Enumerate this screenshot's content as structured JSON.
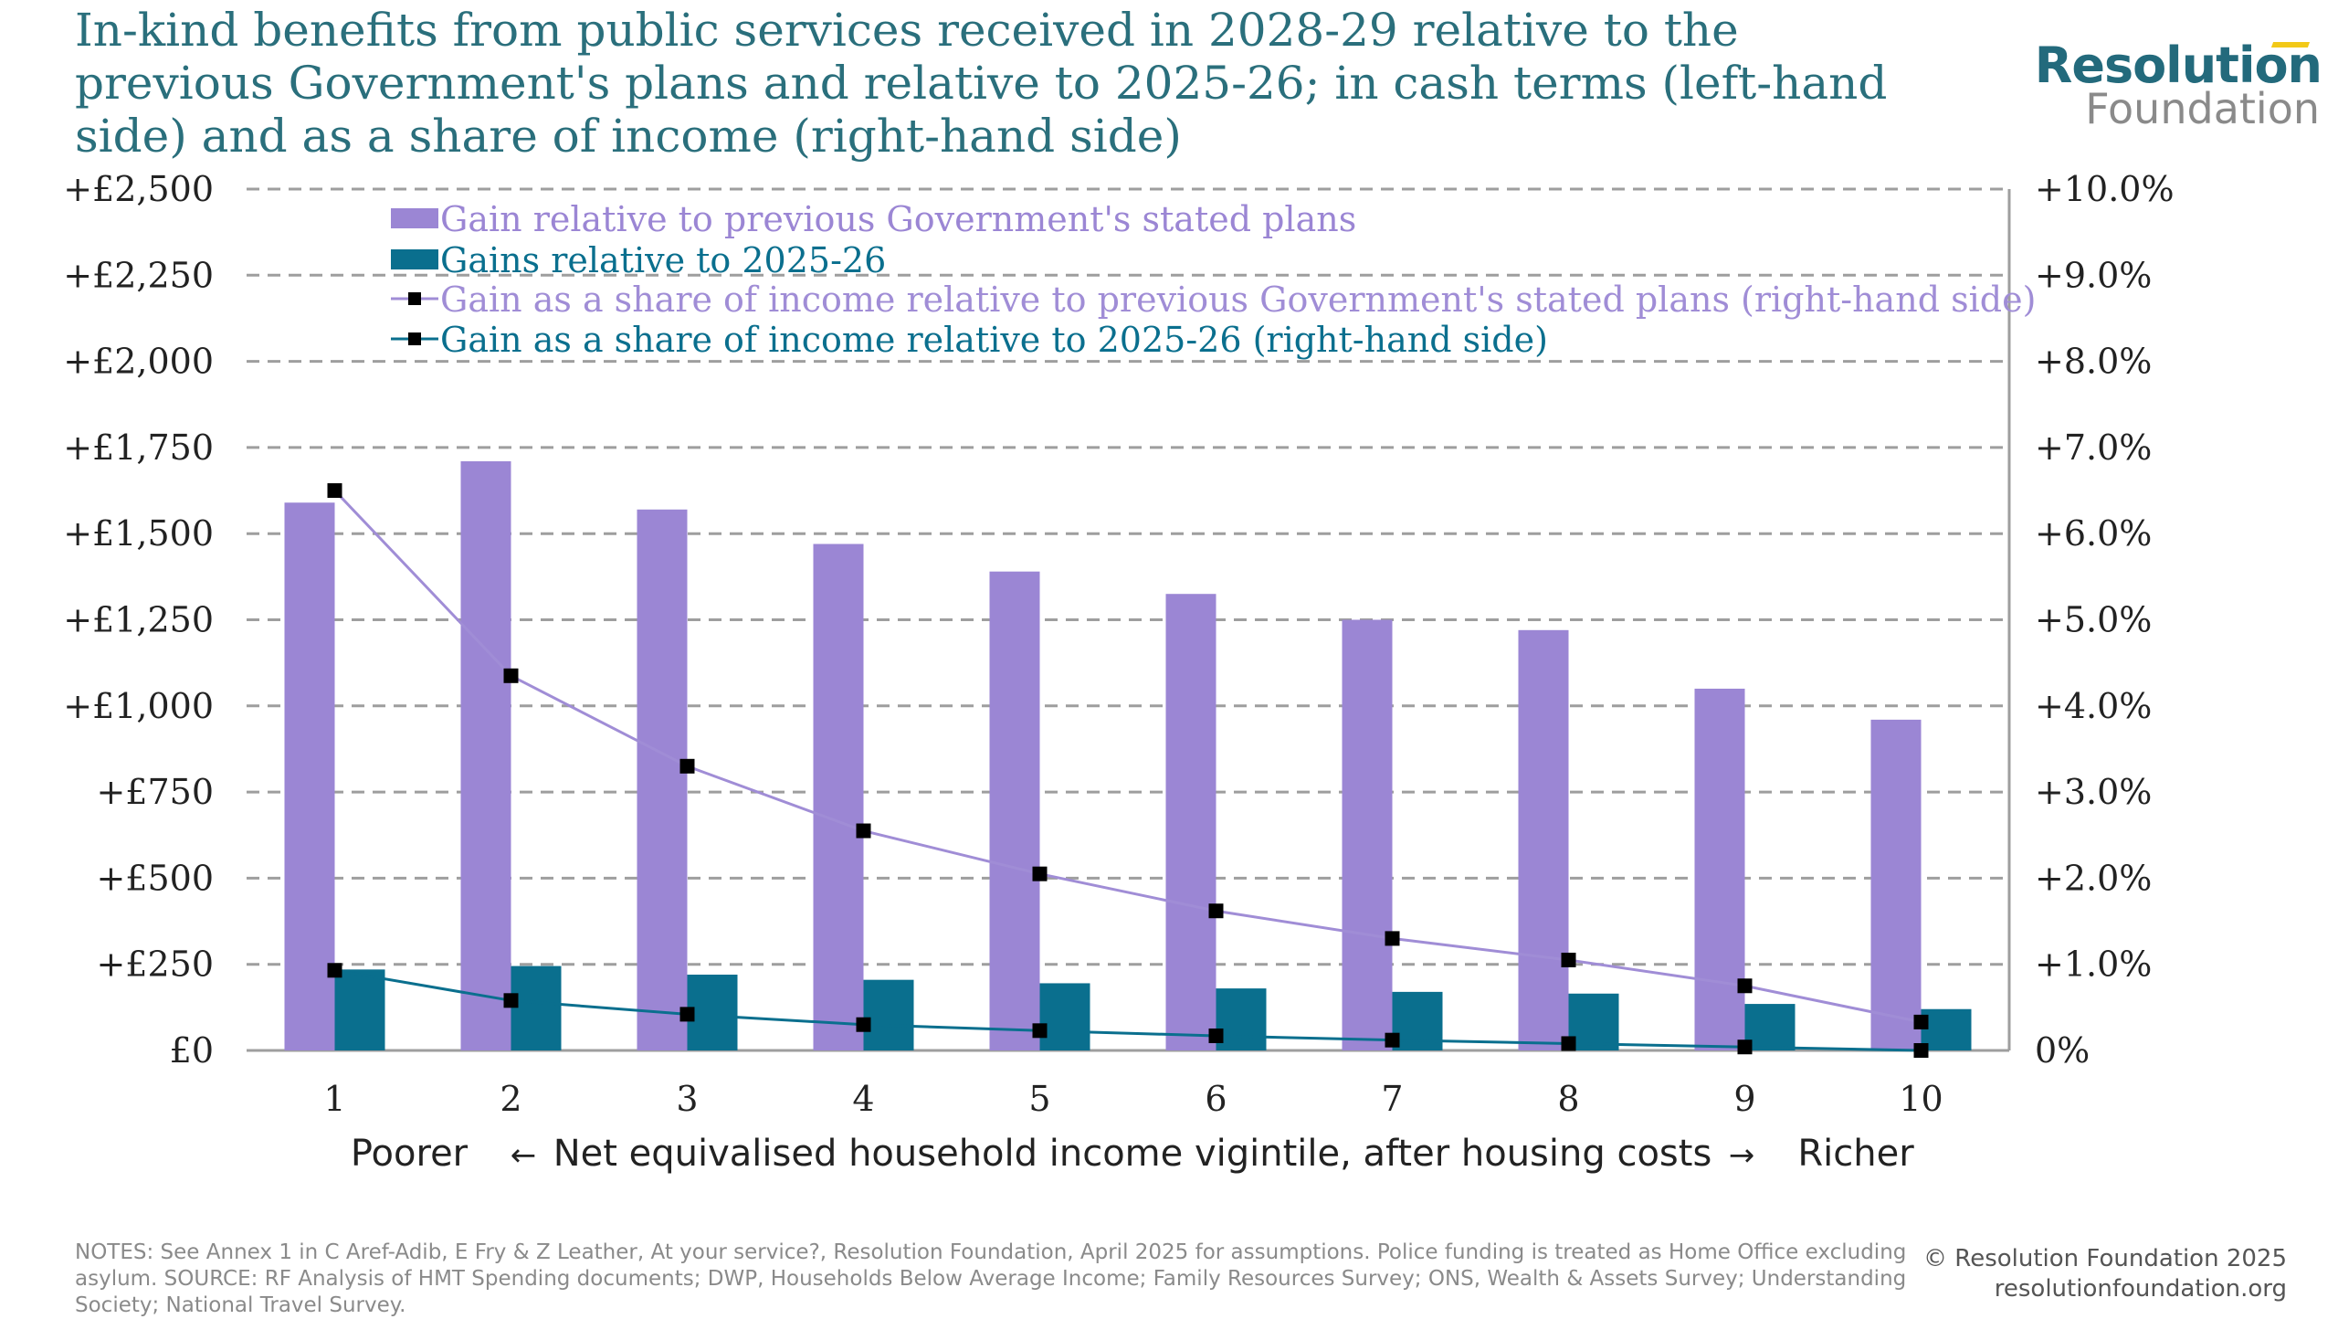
{
  "title": "In-kind benefits from public services received in 2028-29 relative to the previous Government's plans and relative to 2025-26; in cash terms (left-hand side) and as a share of income (right-hand side)",
  "logo": {
    "top": "Resolution",
    "bottom": "Foundation"
  },
  "notes": "NOTES: See Annex 1 in C Aref-Adib, E Fry & Z Leather, At your service?, Resolution Foundation, April 2025 for assumptions. Police funding is treated as Home Office excluding asylum. SOURCE: RF Analysis of HMT Spending documents; DWP, Households Below Average Income; Family Resources Survey; ONS, Wealth & Assets Survey; Understanding Society; National Travel Survey.",
  "copyright": {
    "line1": "© Resolution Foundation 2025",
    "line2": "resolutionfoundation.org"
  },
  "chart_data": {
    "type": "bar",
    "categories": [
      "1",
      "2",
      "3",
      "4",
      "5",
      "6",
      "7",
      "8",
      "9",
      "10"
    ],
    "xlabel": {
      "left": "Poorer",
      "left_arrow": "←",
      "center": "Net equivalised household income vigintile, after housing costs",
      "right_arrow": "→",
      "right": "Richer"
    },
    "y_left": {
      "range": [
        0,
        2500
      ],
      "ticks": [
        0,
        250,
        500,
        750,
        1000,
        1250,
        1500,
        1750,
        2000,
        2250,
        2500
      ],
      "tick_labels": [
        "£0",
        "+£250",
        "+£500",
        "+£750",
        "+£1,000",
        "+£1,250",
        "+£1,500",
        "+£1,750",
        "+£2,000",
        "+£2,250",
        "+£2,500"
      ]
    },
    "y_right": {
      "range": [
        0,
        10
      ],
      "ticks": [
        0,
        1,
        2,
        3,
        4,
        5,
        6,
        7,
        8,
        9,
        10
      ],
      "tick_labels": [
        "0%",
        "+1.0%",
        "+2.0%",
        "+3.0%",
        "+4.0%",
        "+5.0%",
        "+6.0%",
        "+7.0%",
        "+8.0%",
        "+9.0%",
        "+10.0%"
      ]
    },
    "grid": true,
    "legend_position": "top-left",
    "series": [
      {
        "name": "Gain relative to previous Government's stated plans",
        "kind": "bar",
        "axis": "left",
        "color": "#9b86d4",
        "values": [
          1590,
          1710,
          1570,
          1470,
          1390,
          1325,
          1250,
          1220,
          1050,
          960
        ]
      },
      {
        "name": "Gains relative to 2025-26",
        "kind": "bar",
        "axis": "left",
        "color": "#0a6f8e",
        "values": [
          235,
          245,
          220,
          205,
          195,
          180,
          170,
          165,
          135,
          120
        ]
      },
      {
        "name": "Gain as a share of income relative to previous Government's stated plans (right-hand side)",
        "kind": "line",
        "axis": "right",
        "color": "#a08dd6",
        "values": [
          6.5,
          4.35,
          3.3,
          2.55,
          2.05,
          1.62,
          1.3,
          1.05,
          0.75,
          0.33
        ]
      },
      {
        "name": "Gain as a share of income relative to 2025-26 (right-hand side)",
        "kind": "line",
        "axis": "right",
        "color": "#0a6f8e",
        "values": [
          0.93,
          0.58,
          0.42,
          0.3,
          0.23,
          0.17,
          0.12,
          0.08,
          0.04,
          0.0
        ]
      }
    ]
  }
}
